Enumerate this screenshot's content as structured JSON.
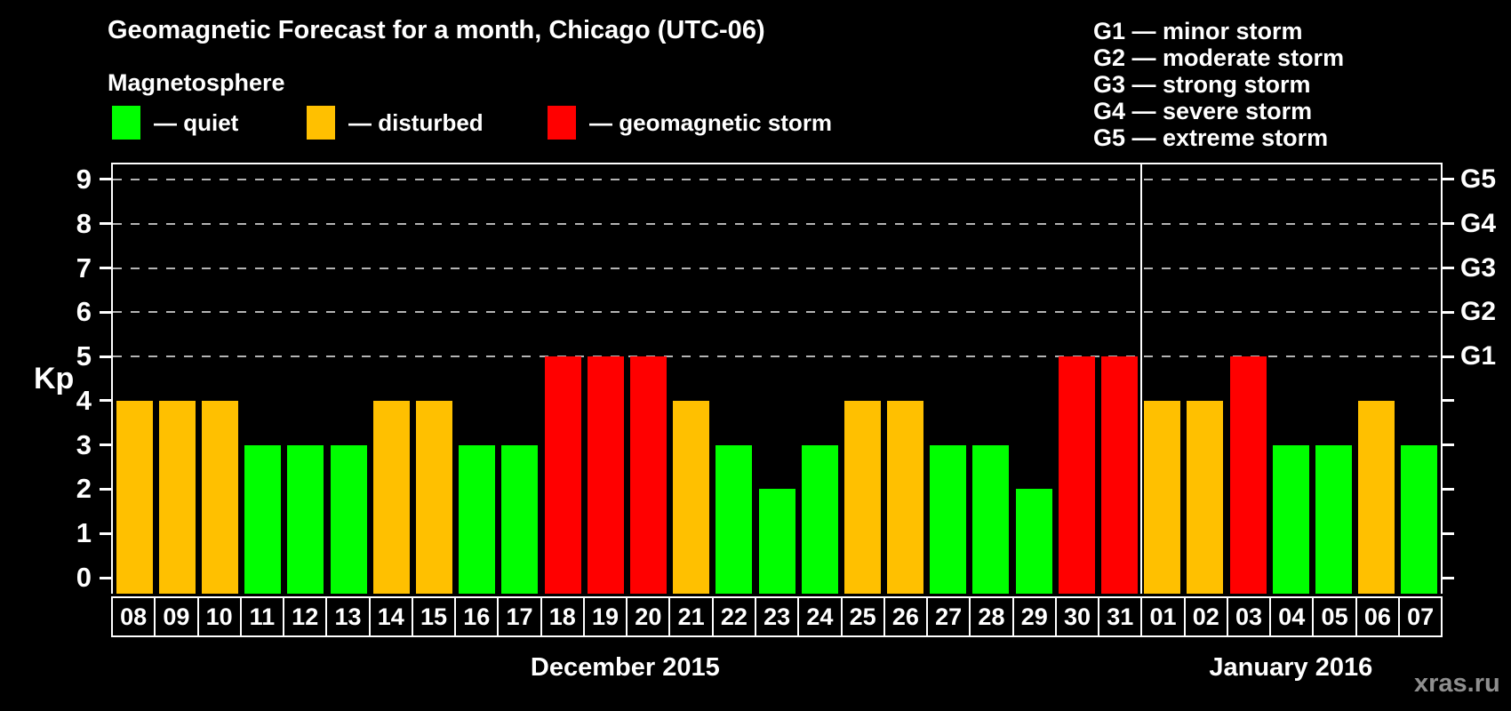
{
  "title": "Geomagnetic Forecast for a month, Chicago (UTC-06)",
  "subtitle": "Magnetosphere",
  "colors": {
    "quiet": "#00ff00",
    "disturbed": "#ffc000",
    "storm": "#ff0000",
    "background": "#000000",
    "text": "#ffffff",
    "grid": "#b4b4b4",
    "watermark": "#8f8f8f"
  },
  "legend": {
    "quiet_label": "— quiet",
    "disturbed_label": "— disturbed",
    "storm_label": "— geomagnetic storm"
  },
  "g_scale_legend": [
    "G1 — minor storm",
    "G2 — moderate storm",
    "G3 — strong storm",
    "G4 — severe storm",
    "G5 — extreme storm"
  ],
  "watermark": "xras.ru",
  "chart_data": {
    "type": "bar",
    "title": "Geomagnetic Forecast for a month, Chicago (UTC-06)",
    "ylabel": "Kp",
    "ylim": [
      0,
      9
    ],
    "y_ticks": [
      0,
      1,
      2,
      3,
      4,
      5,
      6,
      7,
      8,
      9
    ],
    "gridline_levels": [
      5,
      6,
      7,
      8,
      9
    ],
    "grid_style": "dashed horizontal lines at storm levels only",
    "right_axis_labels": [
      {
        "kp": 5,
        "label": "G1"
      },
      {
        "kp": 6,
        "label": "G2"
      },
      {
        "kp": 7,
        "label": "G3"
      },
      {
        "kp": 8,
        "label": "G4"
      },
      {
        "kp": 9,
        "label": "G5"
      }
    ],
    "categories": [
      "08",
      "09",
      "10",
      "11",
      "12",
      "13",
      "14",
      "15",
      "16",
      "17",
      "18",
      "19",
      "20",
      "21",
      "22",
      "23",
      "24",
      "25",
      "26",
      "27",
      "28",
      "29",
      "30",
      "31",
      "01",
      "02",
      "03",
      "04",
      "05",
      "06",
      "07"
    ],
    "values": [
      4,
      4,
      4,
      3,
      3,
      3,
      4,
      4,
      3,
      3,
      5,
      5,
      5,
      4,
      3,
      2,
      3,
      4,
      4,
      3,
      3,
      2,
      5,
      5,
      4,
      4,
      5,
      3,
      3,
      4,
      3
    ],
    "states": [
      "disturbed",
      "disturbed",
      "disturbed",
      "quiet",
      "quiet",
      "quiet",
      "disturbed",
      "disturbed",
      "quiet",
      "quiet",
      "storm",
      "storm",
      "storm",
      "disturbed",
      "quiet",
      "quiet",
      "quiet",
      "disturbed",
      "disturbed",
      "quiet",
      "quiet",
      "quiet",
      "storm",
      "storm",
      "disturbed",
      "disturbed",
      "storm",
      "quiet",
      "quiet",
      "disturbed",
      "quiet"
    ],
    "months": [
      {
        "label": "December 2015",
        "start_index": 0,
        "end_index": 23
      },
      {
        "label": "January 2016",
        "start_index": 24,
        "end_index": 30
      }
    ],
    "month_separator_after_index": 23,
    "legend_position": "top-left"
  }
}
